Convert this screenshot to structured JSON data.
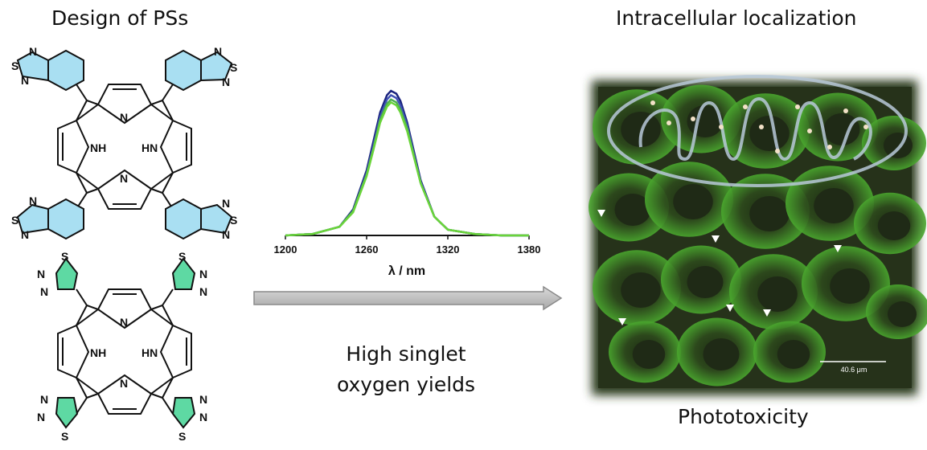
{
  "captions": {
    "design": "Design of PSs",
    "intracellular": "Intracellular localization",
    "phototoxicity": "Phototoxicity",
    "high_line1": "High singlet",
    "high_line2": "oxygen yields"
  },
  "molecules": {
    "top_labels": {
      "nh": "NH",
      "hn": "HN",
      "n": "N",
      "s": "S"
    },
    "bottom_labels": {
      "nh": "NH",
      "hn": "HN",
      "n": "N",
      "s": "S"
    },
    "top_substituent_color": "#a9dff2",
    "bottom_substituent_color": "#5ed9a3"
  },
  "spectrum": {
    "xlabel": "λ / nm",
    "ticks": [
      "1200",
      "1260",
      "1320",
      "1380"
    ],
    "colors": [
      "#1a237e",
      "#3f51b5",
      "#4caf50",
      "#6ad43a"
    ]
  },
  "chart_data": {
    "type": "line",
    "xlabel": "λ / nm",
    "xlim": [
      1200,
      1380
    ],
    "ticks": [
      1200,
      1260,
      1320,
      1380
    ],
    "series": [
      {
        "x": [
          1200,
          1220,
          1240,
          1250,
          1260,
          1265,
          1270,
          1275,
          1278,
          1282,
          1285,
          1290,
          1295,
          1300,
          1310,
          1320,
          1340,
          1360,
          1380
        ],
        "values": [
          0,
          0.01,
          0.06,
          0.18,
          0.45,
          0.65,
          0.85,
          0.97,
          1.0,
          0.98,
          0.93,
          0.78,
          0.58,
          0.38,
          0.13,
          0.04,
          0.01,
          0,
          0
        ]
      },
      {
        "x": [
          1200,
          1220,
          1240,
          1250,
          1260,
          1265,
          1270,
          1275,
          1278,
          1282,
          1285,
          1290,
          1295,
          1300,
          1310,
          1320,
          1340,
          1360,
          1380
        ],
        "values": [
          0,
          0.01,
          0.06,
          0.17,
          0.43,
          0.62,
          0.82,
          0.94,
          0.97,
          0.95,
          0.9,
          0.76,
          0.56,
          0.37,
          0.13,
          0.04,
          0.01,
          0,
          0
        ]
      },
      {
        "x": [
          1200,
          1220,
          1240,
          1250,
          1260,
          1265,
          1270,
          1275,
          1278,
          1282,
          1285,
          1290,
          1295,
          1300,
          1310,
          1320,
          1340,
          1360,
          1380
        ],
        "values": [
          0,
          0.01,
          0.06,
          0.17,
          0.42,
          0.6,
          0.8,
          0.91,
          0.94,
          0.92,
          0.87,
          0.74,
          0.55,
          0.36,
          0.13,
          0.04,
          0.01,
          0,
          0
        ]
      },
      {
        "x": [
          1200,
          1220,
          1240,
          1250,
          1260,
          1265,
          1270,
          1275,
          1278,
          1282,
          1285,
          1290,
          1295,
          1300,
          1310,
          1320,
          1340,
          1360,
          1380
        ],
        "values": [
          0,
          0.01,
          0.06,
          0.16,
          0.41,
          0.59,
          0.78,
          0.89,
          0.92,
          0.9,
          0.85,
          0.72,
          0.54,
          0.36,
          0.13,
          0.04,
          0.01,
          0,
          0
        ]
      }
    ]
  },
  "microscopy": {
    "scale_label": "40.6 μm"
  }
}
